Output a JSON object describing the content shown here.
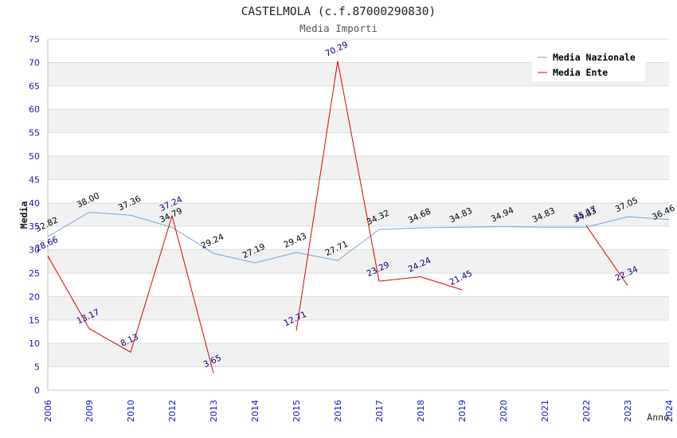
{
  "chart_data": {
    "type": "line",
    "title": "CASTELMOLA (c.f.87000290830)",
    "subtitle": "Media Importi",
    "xlabel": "Anno",
    "ylabel": "Media",
    "ylim": [
      0,
      75
    ],
    "yticks": [
      0,
      5,
      10,
      15,
      20,
      25,
      30,
      35,
      40,
      45,
      50,
      55,
      60,
      65,
      70,
      75
    ],
    "categories": [
      "2006",
      "2009",
      "2010",
      "2012",
      "2013",
      "2014",
      "2015",
      "2016",
      "2017",
      "2018",
      "2019",
      "2020",
      "2021",
      "2022",
      "2023",
      "2024"
    ],
    "series": [
      {
        "name": "Media Nazionale",
        "color": "#6fa5dd",
        "label_color": "#000000",
        "values": [
          32.82,
          38.0,
          37.36,
          34.79,
          29.24,
          27.19,
          29.43,
          27.71,
          34.32,
          34.68,
          34.83,
          34.94,
          34.83,
          34.83,
          37.05,
          36.46
        ]
      },
      {
        "name": "Media Ente",
        "color": "#e00000",
        "label_color": "#000080",
        "values": [
          28.66,
          13.17,
          8.13,
          37.24,
          3.65,
          null,
          12.71,
          70.29,
          23.29,
          24.24,
          21.45,
          null,
          null,
          35.17,
          22.34,
          null
        ]
      }
    ]
  }
}
